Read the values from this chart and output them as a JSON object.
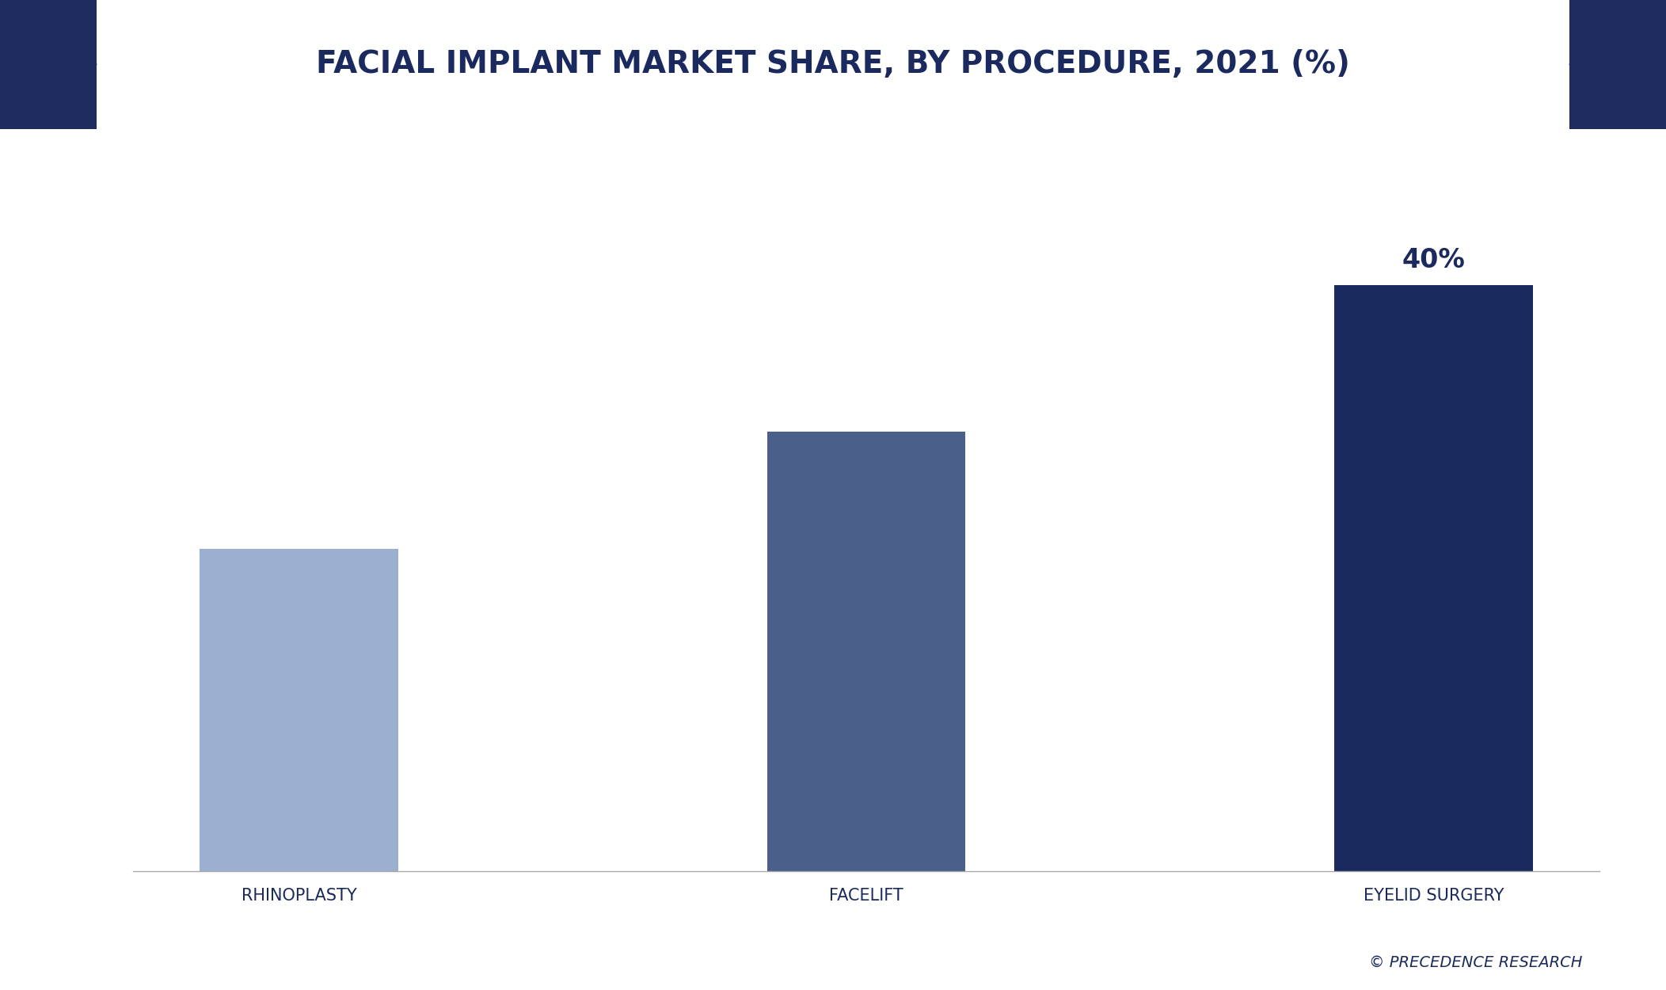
{
  "categories": [
    "RHINOPLASTY",
    "FACELIFT",
    "EYELID SURGERY"
  ],
  "values": [
    22,
    30,
    40
  ],
  "bar_colors": [
    "#9bafd1",
    "#4a5f8a",
    "#1b2a5e"
  ],
  "bar_label_index": 2,
  "bar_label": "40%",
  "title": "FACIAL IMPLANT MARKET SHARE, BY PROCEDURE, 2021 (%)",
  "title_color": "#1b2a5e",
  "title_fontsize": 28,
  "xlabel_fontsize": 15,
  "xlabel_color": "#1b2a5e",
  "label_fontsize": 24,
  "label_color": "#1b2a5e",
  "ylim": [
    0,
    50
  ],
  "background_color": "#ffffff",
  "header_dark_color": "#1e2d5e",
  "footer_text": "© PRECEDENCE RESEARCH",
  "footer_color": "#1b2a5e",
  "footer_fontsize": 14
}
